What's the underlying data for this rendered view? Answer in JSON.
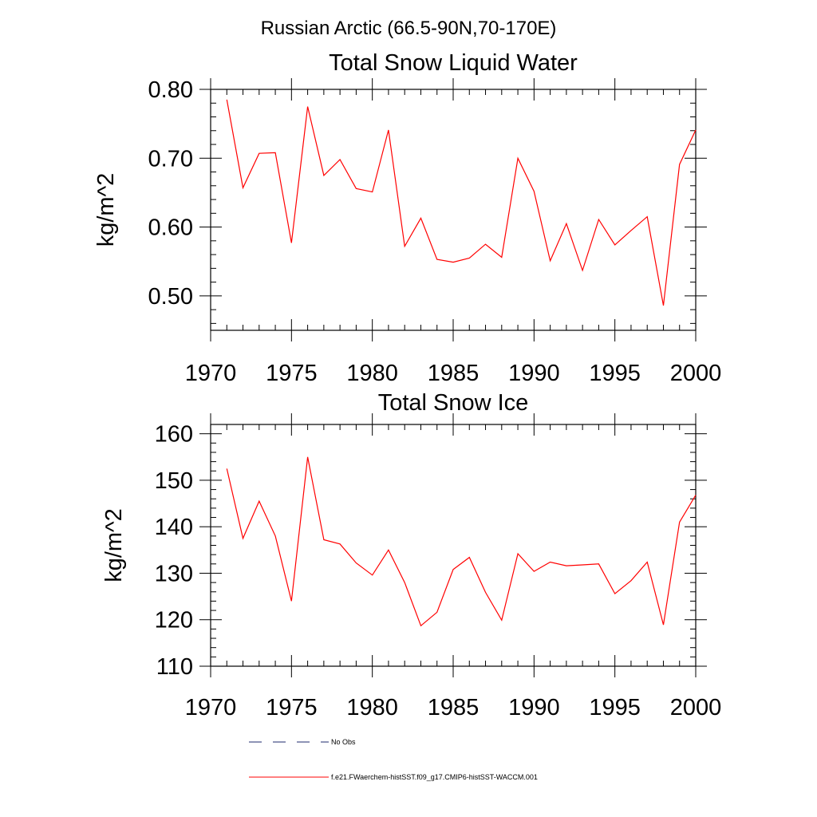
{
  "figure": {
    "title": "Russian Arctic (66.5-90N,70-170E)"
  },
  "legend": {
    "items": [
      {
        "label": "No Obs",
        "style": "dashed",
        "color": "#1e2a6e"
      },
      {
        "label": "f.e21.FWaerchem-histSST.f09_g17.CMIP6-histSST-WACCM.001",
        "style": "solid",
        "color": "#ff0000"
      }
    ]
  },
  "chart_data": [
    {
      "type": "line",
      "title": "Total Snow Liquid Water",
      "xlabel": "",
      "ylabel": "kg/m^2",
      "xlim": [
        1970,
        2000
      ],
      "ylim": [
        0.45,
        0.8
      ],
      "x_ticks": [
        1970,
        1975,
        1980,
        1985,
        1990,
        1995,
        2000
      ],
      "y_ticks": [
        0.5,
        0.6,
        0.7,
        0.8
      ],
      "y_tick_labels": [
        "0.50",
        "0.60",
        "0.70",
        "0.80"
      ],
      "grid": false,
      "series": [
        {
          "name": "f.e21.FWaerchem-histSST.f09_g17.CMIP6-histSST-WACCM.001",
          "color": "#ff0000",
          "x": [
            1971,
            1972,
            1973,
            1974,
            1975,
            1976,
            1977,
            1978,
            1979,
            1980,
            1981,
            1982,
            1983,
            1984,
            1985,
            1986,
            1987,
            1988,
            1989,
            1990,
            1991,
            1992,
            1993,
            1994,
            1995,
            1996,
            1997,
            1998,
            1999,
            2000
          ],
          "values": [
            0.785,
            0.657,
            0.707,
            0.708,
            0.577,
            0.775,
            0.675,
            0.698,
            0.656,
            0.651,
            0.741,
            0.572,
            0.613,
            0.553,
            0.549,
            0.555,
            0.575,
            0.556,
            0.7,
            0.652,
            0.551,
            0.605,
            0.537,
            0.611,
            0.574,
            0.595,
            0.615,
            0.486,
            0.691,
            0.741
          ]
        }
      ]
    },
    {
      "type": "line",
      "title": "Total Snow Ice",
      "xlabel": "",
      "ylabel": "kg/m^2",
      "xlim": [
        1970,
        2000
      ],
      "ylim": [
        110,
        162
      ],
      "x_ticks": [
        1970,
        1975,
        1980,
        1985,
        1990,
        1995,
        2000
      ],
      "y_ticks": [
        110,
        120,
        130,
        140,
        150,
        160
      ],
      "y_tick_labels": [
        "110",
        "120",
        "130",
        "140",
        "150",
        "160"
      ],
      "grid": false,
      "series": [
        {
          "name": "f.e21.FWaerchem-histSST.f09_g17.CMIP6-histSST-WACCM.001",
          "color": "#ff0000",
          "x": [
            1971,
            1972,
            1973,
            1974,
            1975,
            1976,
            1977,
            1978,
            1979,
            1980,
            1981,
            1982,
            1983,
            1984,
            1985,
            1986,
            1987,
            1988,
            1989,
            1990,
            1991,
            1992,
            1993,
            1994,
            1995,
            1996,
            1997,
            1998,
            1999,
            2000
          ],
          "values": [
            152.5,
            137.5,
            145.5,
            138.0,
            124.0,
            155.0,
            137.2,
            136.3,
            132.2,
            129.6,
            135.0,
            128.0,
            118.7,
            121.6,
            130.8,
            133.4,
            125.9,
            119.9,
            134.2,
            130.4,
            132.4,
            131.6,
            131.8,
            132.0,
            125.6,
            128.4,
            132.4,
            118.9,
            141.0,
            146.8
          ]
        }
      ]
    }
  ]
}
